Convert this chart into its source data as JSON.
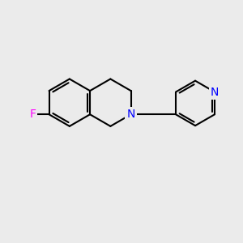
{
  "background_color": "#ebebeb",
  "bond_color": "#000000",
  "bond_width": 1.5,
  "N_color": "#0000ff",
  "F_color": "#ff00ff",
  "font_size_atom": 10,
  "fig_size": [
    3.0,
    3.0
  ],
  "dpi": 100,
  "xlim": [
    0,
    10
  ],
  "ylim": [
    0,
    10
  ]
}
